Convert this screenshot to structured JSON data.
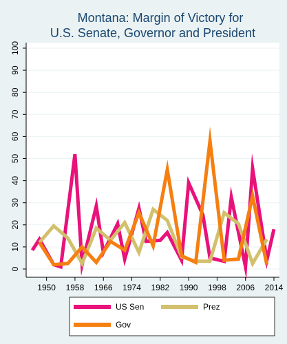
{
  "chart_data": {
    "type": "line",
    "title": [
      "Montana: Margin of Victory for",
      "U.S. Senate, Governor and President"
    ],
    "xlabel": "",
    "ylabel": "",
    "xlim": [
      1942,
      2016
    ],
    "ylim": [
      0,
      100
    ],
    "x_ticks": [
      1950,
      1958,
      1966,
      1974,
      1982,
      1990,
      1998,
      2006,
      2014
    ],
    "y_ticks": [
      0,
      10,
      20,
      30,
      40,
      50,
      60,
      70,
      80,
      90,
      100
    ],
    "grid": true,
    "legend_placement": "bottom",
    "series": [
      {
        "name": "US Sen",
        "color": "#e8127a",
        "x": [
          1946,
          1948,
          1952,
          1954,
          1958,
          1960,
          1964,
          1966,
          1970,
          1972,
          1976,
          1978,
          1982,
          1984,
          1988,
          1990,
          1994,
          1996,
          2000,
          2002,
          2006,
          2008,
          2012,
          2014
        ],
        "y": [
          8.5,
          13.5,
          2,
          1,
          52,
          2,
          28.5,
          7.5,
          20.5,
          4.5,
          27.5,
          12.5,
          13,
          16.5,
          4,
          39,
          24.5,
          5,
          3.5,
          32.5,
          1,
          45.5,
          4,
          18
        ]
      },
      {
        "name": "Prez",
        "color": "#d2c06c",
        "x": [
          1948,
          1952,
          1956,
          1960,
          1964,
          1968,
          1972,
          1976,
          1980,
          1984,
          1988,
          1992,
          1996,
          2000,
          2004,
          2008,
          2012
        ],
        "y": [
          12,
          19.5,
          14,
          2.5,
          18.5,
          13,
          21,
          7.5,
          27,
          22,
          5.5,
          3.5,
          3.5,
          25.5,
          20.5,
          2.5,
          13.5
        ]
      },
      {
        "name": "Gov",
        "color": "#f57f11",
        "x": [
          1948,
          1952,
          1956,
          1960,
          1964,
          1968,
          1972,
          1976,
          1980,
          1984,
          1988,
          1992,
          1996,
          2000,
          2004,
          2008,
          2012
        ],
        "y": [
          12,
          2,
          2.5,
          10,
          3,
          12.5,
          8.5,
          25.5,
          10.5,
          45,
          6,
          3,
          58,
          4,
          4.5,
          33,
          2
        ]
      }
    ]
  }
}
